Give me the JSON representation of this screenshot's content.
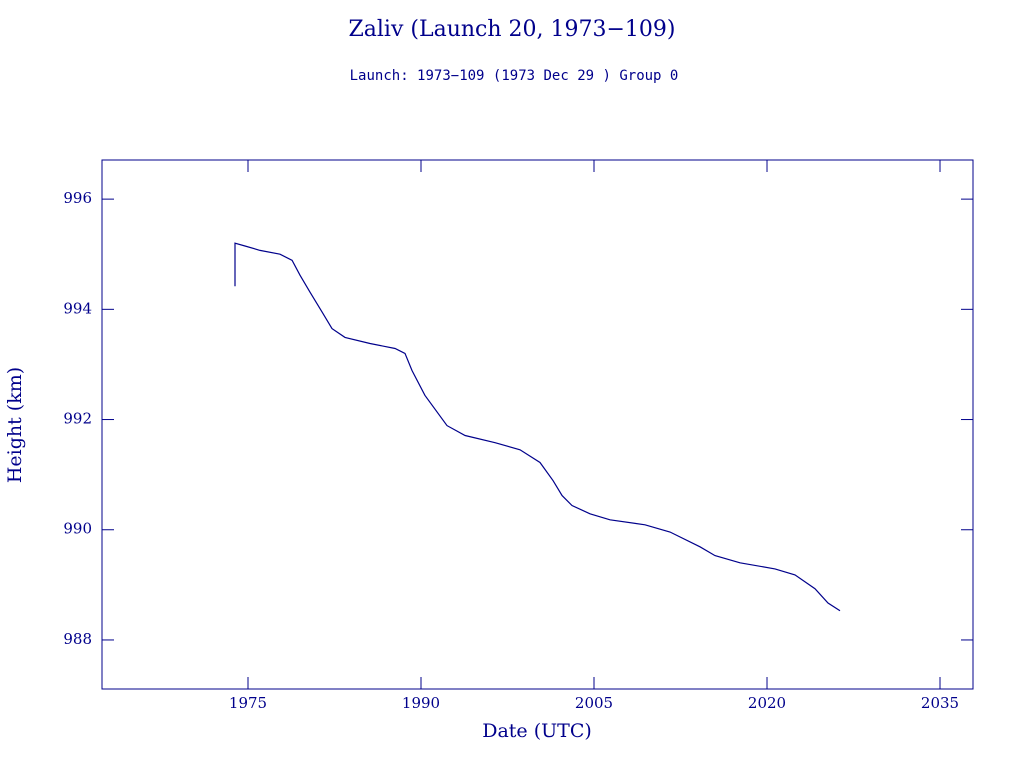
{
  "chart_data": {
    "type": "line",
    "title": "Zaliv (Launch 20, 1973−109)",
    "subtitle": "Launch: 1973−109  (1973 Dec 29 )  Group 0",
    "x_label": "Date (UTC)",
    "y_label": "Height (km)",
    "xlim": [
      1962.34,
      2037.86
    ],
    "ylim": [
      987.11,
      996.71
    ],
    "xticks": [
      1975,
      1990,
      2005,
      2020,
      2035
    ],
    "yticks": [
      988,
      990,
      992,
      994,
      996
    ],
    "series": [
      {
        "color": "#00008b",
        "x": [
          1973.87,
          1973.87,
          1974.74,
          1976.04,
          1977.77,
          1978.82,
          1979.51,
          1980.38,
          1981.42,
          1982.28,
          1983.41,
          1985.58,
          1987.75,
          1988.61,
          1989.22,
          1990.34,
          1992.25,
          1993.82,
          1996.42,
          1998.58,
          2000.32,
          2001.45,
          2002.23,
          2003.09,
          2004.65,
          2006.39,
          2009.42,
          2011.59,
          2014.19,
          2015.49,
          2017.66,
          2020.69,
          2022.43,
          2024.16,
          2025.29,
          2026.33
        ],
        "values": [
          994.42,
          995.2,
          995.15,
          995.07,
          995.0,
          994.89,
          994.62,
          994.31,
          993.95,
          993.65,
          993.49,
          993.38,
          993.29,
          993.2,
          992.89,
          992.44,
          991.89,
          991.71,
          991.58,
          991.45,
          991.22,
          990.89,
          990.62,
          990.44,
          990.29,
          990.18,
          990.09,
          989.96,
          989.69,
          989.53,
          989.4,
          989.29,
          989.18,
          988.93,
          988.67,
          988.53
        ]
      }
    ]
  }
}
